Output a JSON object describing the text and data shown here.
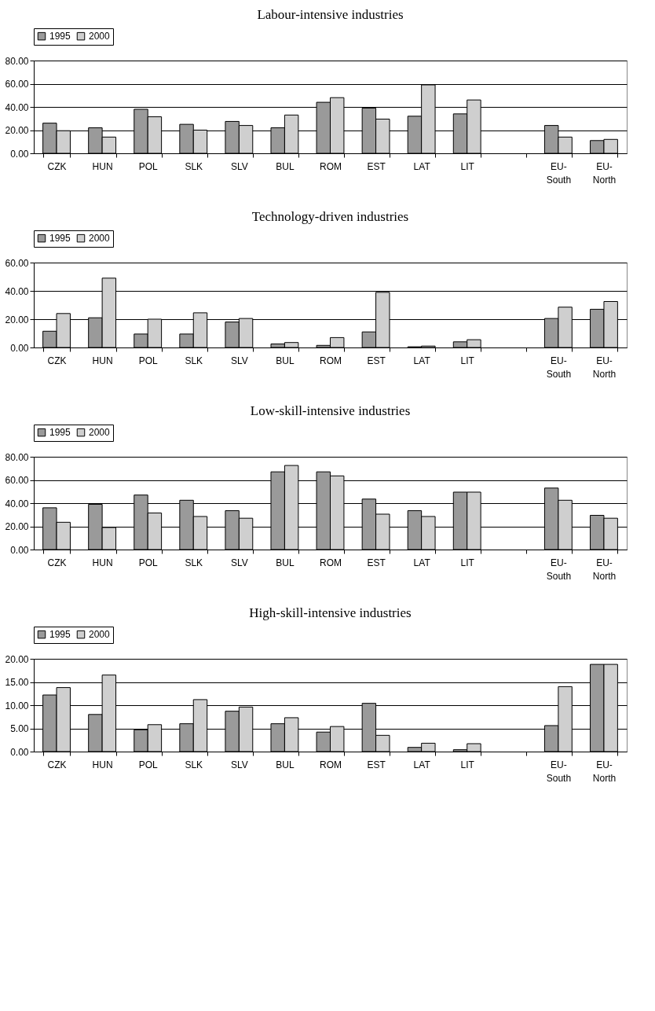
{
  "chart_data": [
    {
      "type": "bar",
      "title": "Labour-intensive industries",
      "categories": [
        "CZK",
        "HUN",
        "POL",
        "SLK",
        "SLV",
        "BUL",
        "ROM",
        "EST",
        "LAT",
        "LIT",
        null,
        "EU-South",
        "EU-North"
      ],
      "series": [
        {
          "name": "1995",
          "color": "#9a9a9a",
          "values": [
            26,
            22,
            38,
            25,
            27.5,
            22,
            44,
            39,
            32,
            34,
            null,
            24,
            11
          ]
        },
        {
          "name": "2000",
          "color": "#cfcfcf",
          "values": [
            19.5,
            14,
            31.5,
            20,
            24,
            33,
            48,
            29.5,
            59,
            46,
            null,
            14,
            12
          ]
        }
      ],
      "ylim": [
        0,
        80
      ],
      "yticks": [
        {
          "value": 0,
          "label": "0.00"
        },
        {
          "value": 20,
          "label": "20.00"
        },
        {
          "value": 40,
          "label": "40.00"
        },
        {
          "value": 60,
          "label": "60.00"
        },
        {
          "value": 80,
          "label": "80.00"
        }
      ],
      "grid": "y",
      "legend": "top"
    },
    {
      "type": "bar",
      "title": "Technology-driven industries",
      "categories": [
        "CZK",
        "HUN",
        "POL",
        "SLK",
        "SLV",
        "BUL",
        "ROM",
        "EST",
        "LAT",
        "LIT",
        null,
        "EU-South",
        "EU-North"
      ],
      "series": [
        {
          "name": "1995",
          "color": "#9a9a9a",
          "values": [
            11.5,
            21,
            9.5,
            9.5,
            18,
            2.5,
            1.5,
            11,
            0.5,
            4,
            null,
            20.5,
            27
          ]
        },
        {
          "name": "2000",
          "color": "#cfcfcf",
          "values": [
            24,
            49,
            20,
            24.5,
            20.5,
            3.5,
            7,
            39,
            1,
            5.5,
            null,
            28.5,
            32.5
          ]
        }
      ],
      "ylim": [
        0,
        60
      ],
      "yticks": [
        {
          "value": 0,
          "label": "0.00"
        },
        {
          "value": 20,
          "label": "20.00"
        },
        {
          "value": 40,
          "label": "40.00"
        },
        {
          "value": 60,
          "label": "60.00"
        }
      ],
      "grid": "y",
      "legend": "top"
    },
    {
      "type": "bar",
      "title": "Low-skill-intensive industries",
      "categories": [
        "CZK",
        "HUN",
        "POL",
        "SLK",
        "SLV",
        "BUL",
        "ROM",
        "EST",
        "LAT",
        "LIT",
        null,
        "EU-South",
        "EU-North"
      ],
      "series": [
        {
          "name": "1995",
          "color": "#9a9a9a",
          "values": [
            36,
            39,
            47,
            42.5,
            33.5,
            67,
            67,
            43.5,
            33.5,
            49.5,
            null,
            53,
            29.5
          ]
        },
        {
          "name": "2000",
          "color": "#cfcfcf",
          "values": [
            23.5,
            19,
            31.5,
            28.5,
            27,
            72.5,
            63.5,
            30.5,
            28.5,
            49.5,
            null,
            42.5,
            27
          ]
        }
      ],
      "ylim": [
        0,
        80
      ],
      "yticks": [
        {
          "value": 0,
          "label": "0.00"
        },
        {
          "value": 20,
          "label": "20.00"
        },
        {
          "value": 40,
          "label": "40.00"
        },
        {
          "value": 60,
          "label": "60.00"
        },
        {
          "value": 80,
          "label": "80.00"
        }
      ],
      "grid": "y",
      "legend": "top"
    },
    {
      "type": "bar",
      "title": "High-skill-intensive industries",
      "categories": [
        "CZK",
        "HUN",
        "POL",
        "SLK",
        "SLV",
        "BUL",
        "ROM",
        "EST",
        "LAT",
        "LIT",
        null,
        "EU-South",
        "EU-North"
      ],
      "series": [
        {
          "name": "1995",
          "color": "#9a9a9a",
          "values": [
            12.2,
            8,
            4.7,
            6,
            8.7,
            6,
            4.2,
            10.4,
            0.9,
            0.4,
            null,
            5.6,
            18.8
          ]
        },
        {
          "name": "2000",
          "color": "#cfcfcf",
          "values": [
            13.8,
            16.5,
            5.8,
            11.2,
            9.6,
            7.3,
            5.4,
            3.5,
            1.8,
            1.7,
            null,
            14,
            18.8
          ]
        }
      ],
      "ylim": [
        0,
        20
      ],
      "yticks": [
        {
          "value": 0,
          "label": "0.00"
        },
        {
          "value": 5,
          "label": "5.00"
        },
        {
          "value": 10,
          "label": "10.00"
        },
        {
          "value": 15,
          "label": "15.00"
        },
        {
          "value": 20,
          "label": "20.00"
        }
      ],
      "grid": "y",
      "legend": "top"
    }
  ]
}
